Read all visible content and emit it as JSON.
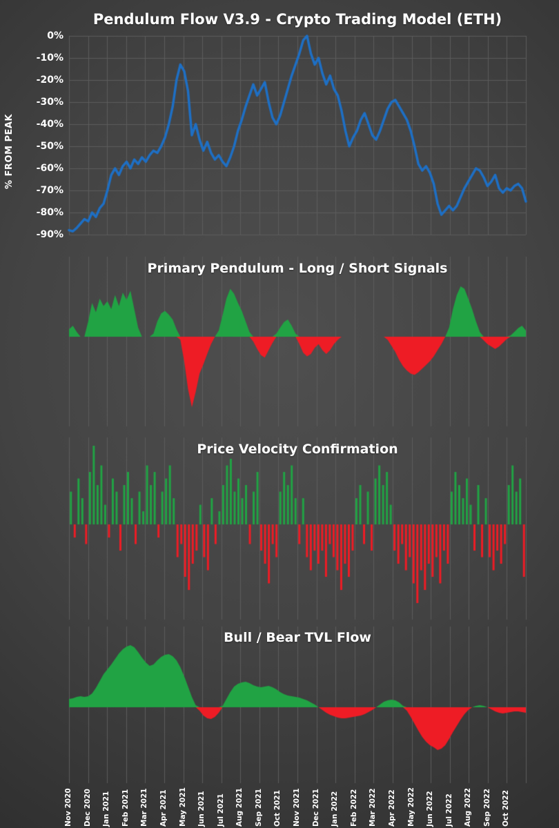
{
  "x_axis": {
    "categories": [
      "Nov 2020",
      "Dec 2020",
      "Jan 2021",
      "Feb 2021",
      "Mar 2021",
      "Apr 2021",
      "May 2021",
      "Jun 2021",
      "Jul 2021",
      "Aug 2021",
      "Sep 2021",
      "Oct 2021",
      "Nov 2021",
      "Dec 2021",
      "Jan 2022",
      "Feb 2022",
      "Mar 2022",
      "Apr 2022",
      "May 2022",
      "Jun 2022",
      "Jul 2022",
      "Aug 2022",
      "Sep 2022",
      "Oct 2022"
    ]
  },
  "chart_data": [
    {
      "type": "line",
      "title": "Pendulum Flow V3.9 - Crypto Trading Model (ETH)",
      "ylabel": "% FROM PEAK",
      "xlabel": "",
      "yticks": [
        "0%",
        "-10%",
        "-20%",
        "-30%",
        "-40%",
        "-50%",
        "-60%",
        "-70%",
        "-80%",
        "-90%"
      ],
      "ylim": [
        -93,
        1
      ],
      "grid": true,
      "grid_color": "#5c5c5c",
      "line_color": "#1e6fc4",
      "values": [
        -88,
        -88.5,
        -87,
        -85,
        -83,
        -84,
        -80,
        -82,
        -78,
        -76,
        -70,
        -63,
        -60,
        -63,
        -59,
        -57,
        -60,
        -56,
        -58,
        -55,
        -57,
        -54,
        -52,
        -53,
        -50,
        -46,
        -40,
        -32,
        -20,
        -13,
        -16,
        -25,
        -45,
        -40,
        -47,
        -52,
        -48,
        -53,
        -56,
        -54,
        -57,
        -59,
        -55,
        -50,
        -43,
        -38,
        -32,
        -27,
        -22,
        -27,
        -24,
        -21,
        -30,
        -37,
        -40,
        -36,
        -30,
        -24,
        -18,
        -13,
        -8,
        -2,
        0,
        -8,
        -13,
        -10,
        -17,
        -22,
        -18,
        -24,
        -27,
        -34,
        -43,
        -50,
        -46,
        -43,
        -38,
        -35,
        -40,
        -45,
        -47,
        -43,
        -38,
        -33,
        -30,
        -29,
        -32,
        -35,
        -38,
        -43,
        -50,
        -58,
        -61,
        -59,
        -62,
        -67,
        -76,
        -81,
        -79,
        -77,
        -79,
        -77,
        -73,
        -69,
        -66,
        -63,
        -60,
        -61,
        -64,
        -68,
        -66,
        -63,
        -69,
        -71,
        -69,
        -70,
        -68,
        -67,
        -69,
        -75
      ]
    },
    {
      "type": "area",
      "title": "Primary Pendulum - Long / Short Signals",
      "ylim": [
        -1.45,
        0.9
      ],
      "pos_color": "#21a344",
      "neg_color": "#ee1c25",
      "values": [
        0.12,
        0.18,
        0.08,
        0,
        0,
        0.25,
        0.55,
        0.4,
        0.62,
        0.5,
        0.58,
        0.45,
        0.68,
        0.5,
        0.72,
        0.6,
        0.75,
        0.45,
        0.15,
        0,
        0,
        0,
        0.05,
        0.25,
        0.38,
        0.42,
        0.36,
        0.28,
        0.12,
        -0.05,
        -0.4,
        -0.85,
        -1.15,
        -0.9,
        -0.6,
        -0.45,
        -0.28,
        -0.12,
        0,
        0.1,
        0.35,
        0.62,
        0.78,
        0.7,
        0.55,
        0.42,
        0.25,
        0.08,
        -0.08,
        -0.2,
        -0.3,
        -0.34,
        -0.22,
        -0.1,
        0.05,
        0.15,
        0.24,
        0.28,
        0.18,
        0.05,
        -0.12,
        -0.26,
        -0.32,
        -0.28,
        -0.18,
        -0.12,
        -0.22,
        -0.28,
        -0.22,
        -0.12,
        -0.05,
        0,
        0,
        0,
        0,
        0,
        0,
        0,
        0,
        0,
        0,
        0,
        0,
        -0.05,
        -0.15,
        -0.25,
        -0.38,
        -0.48,
        -0.55,
        -0.6,
        -0.62,
        -0.58,
        -0.52,
        -0.46,
        -0.4,
        -0.32,
        -0.22,
        -0.12,
        0,
        0.15,
        0.45,
        0.68,
        0.82,
        0.78,
        0.62,
        0.45,
        0.25,
        0.08,
        -0.06,
        -0.12,
        -0.16,
        -0.2,
        -0.16,
        -0.1,
        -0.04,
        0.02,
        0.08,
        0.14,
        0.18,
        0.1
      ]
    },
    {
      "type": "bar",
      "title": "Price Velocity Confirmation",
      "ylim": [
        -1.42,
        1.26
      ],
      "pos_color": "#21a344",
      "neg_color": "#ee1c25",
      "values": [
        0.5,
        -0.2,
        0.7,
        0.4,
        -0.3,
        0.8,
        1.2,
        0.6,
        0.9,
        0.3,
        -0.2,
        0.7,
        0.5,
        -0.4,
        0.6,
        0.8,
        0.4,
        -0.3,
        0.5,
        0.2,
        0.9,
        0.6,
        0.8,
        -0.2,
        0.5,
        0.7,
        0.9,
        0.4,
        -0.5,
        -0.3,
        -0.8,
        -1.0,
        -0.6,
        -0.4,
        0.3,
        -0.5,
        -0.7,
        0.4,
        -0.3,
        0.2,
        0.6,
        0.9,
        1.0,
        0.5,
        0.7,
        0.4,
        0.6,
        -0.3,
        0.5,
        0.8,
        -0.4,
        -0.6,
        -0.9,
        -0.3,
        -0.5,
        0.5,
        0.8,
        0.6,
        0.9,
        0.4,
        -0.3,
        0.4,
        -0.5,
        -0.7,
        -0.4,
        -0.6,
        -0.4,
        -0.8,
        -0.3,
        -0.5,
        -0.7,
        -1.0,
        -0.6,
        -0.8,
        -0.4,
        0.4,
        0.6,
        -0.3,
        0.5,
        -0.4,
        0.7,
        0.9,
        0.6,
        0.8,
        0.3,
        -0.4,
        -0.6,
        -0.3,
        -0.7,
        -0.5,
        -0.9,
        -1.2,
        -0.7,
        -1.0,
        -0.6,
        -0.8,
        -0.5,
        -0.9,
        -0.4,
        -0.6,
        0.5,
        0.8,
        0.6,
        0.4,
        0.7,
        0.3,
        -0.4,
        0.6,
        -0.5,
        0.4,
        -0.5,
        -0.7,
        -0.4,
        -0.6,
        -0.3,
        0.6,
        0.9,
        0.5,
        0.7,
        -0.8
      ]
    },
    {
      "type": "area",
      "title": "Bull / Bear TVL Flow",
      "ylim": [
        -1.1,
        0.9
      ],
      "pos_color": "#21a344",
      "neg_color": "#ee1c25",
      "values": [
        0.12,
        0.13,
        0.15,
        0.16,
        0.15,
        0.16,
        0.2,
        0.28,
        0.38,
        0.48,
        0.55,
        0.62,
        0.7,
        0.78,
        0.84,
        0.88,
        0.9,
        0.87,
        0.8,
        0.72,
        0.65,
        0.6,
        0.62,
        0.68,
        0.73,
        0.76,
        0.77,
        0.74,
        0.68,
        0.58,
        0.45,
        0.3,
        0.15,
        0.03,
        -0.05,
        -0.12,
        -0.16,
        -0.17,
        -0.14,
        -0.08,
        0.02,
        0.12,
        0.22,
        0.3,
        0.34,
        0.36,
        0.37,
        0.35,
        0.32,
        0.3,
        0.29,
        0.3,
        0.31,
        0.29,
        0.26,
        0.22,
        0.19,
        0.17,
        0.16,
        0.15,
        0.14,
        0.12,
        0.1,
        0.07,
        0.04,
        0,
        -0.04,
        -0.08,
        -0.11,
        -0.13,
        -0.15,
        -0.16,
        -0.16,
        -0.15,
        -0.14,
        -0.13,
        -0.12,
        -0.1,
        -0.07,
        -0.04,
        0,
        0.04,
        0.08,
        0.1,
        0.11,
        0.1,
        0.07,
        0.02,
        -0.05,
        -0.14,
        -0.24,
        -0.34,
        -0.43,
        -0.5,
        -0.55,
        -0.58,
        -0.62,
        -0.6,
        -0.55,
        -0.46,
        -0.36,
        -0.27,
        -0.18,
        -0.1,
        -0.04,
        0,
        0.02,
        0.03,
        0.02,
        0,
        -0.03,
        -0.06,
        -0.08,
        -0.09,
        -0.08,
        -0.07,
        -0.06,
        -0.06,
        -0.07,
        -0.08
      ]
    }
  ]
}
